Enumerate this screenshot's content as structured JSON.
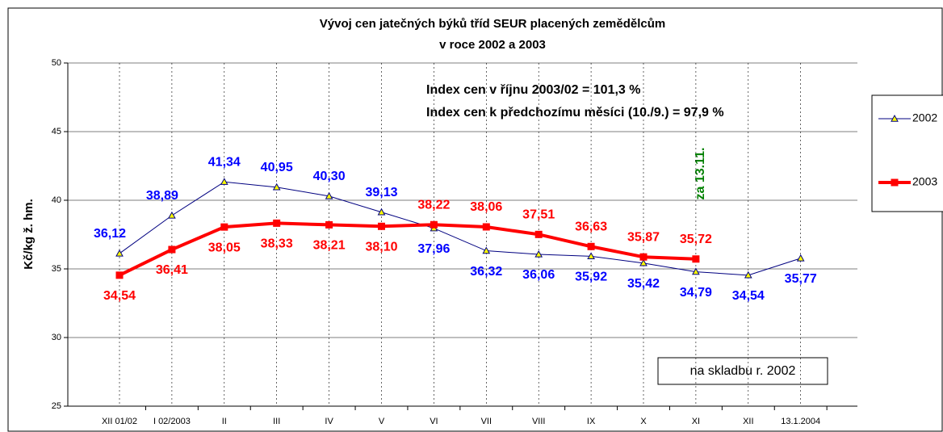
{
  "chart_data": {
    "type": "line",
    "title": [
      "Vývoj cen jatečných býků tříd SEUR placených zemědělcům",
      "v roce 2002 a 2003"
    ],
    "y_label": "Kč/kg ž. hm.",
    "annotations": [
      "Index cen v říjnu 2003/02 = 101,3 %",
      "Index cen k předchozímu měsíci (10./9.) = 97,9 %",
      "za 13.11.",
      "na skladbu r. 2002"
    ],
    "categories": [
      "XII 01/02",
      "I  02/2003",
      "II",
      "III",
      "IV",
      "V",
      "VI",
      "VII",
      "VIII",
      "IX",
      "X",
      "XI",
      "XII",
      "13.1.2004"
    ],
    "series": [
      {
        "name": "2002",
        "color": "#000080",
        "label_color": "#0000ff",
        "marker": "triangle",
        "values": [
          36.12,
          38.89,
          41.34,
          40.95,
          40.3,
          39.13,
          37.96,
          36.32,
          36.06,
          35.92,
          35.42,
          34.79,
          34.54,
          35.77
        ],
        "value_labels": [
          "36,12",
          "38,89",
          "41,34",
          "40,95",
          "40,30",
          "39,13",
          "37,96",
          "36,32",
          "36,06",
          "35,92",
          "35,42",
          "34,79",
          "34,54",
          "35,77"
        ]
      },
      {
        "name": "2003",
        "color": "#ff0000",
        "label_color": "#ff0000",
        "marker": "square",
        "values": [
          34.54,
          36.41,
          38.05,
          38.33,
          38.21,
          38.1,
          38.22,
          38.06,
          37.51,
          36.63,
          35.87,
          35.72,
          null,
          null
        ],
        "value_labels": [
          "34,54",
          "36,41",
          "38,05",
          "38,33",
          "38,21",
          "38,10",
          "38,22",
          "38,06",
          "37,51",
          "36,63",
          "35,87",
          "35,72",
          null,
          null
        ]
      }
    ],
    "ylim": [
      25,
      50
    ],
    "yticks": [
      25,
      30,
      35,
      40,
      45,
      50
    ],
    "grid": true
  }
}
